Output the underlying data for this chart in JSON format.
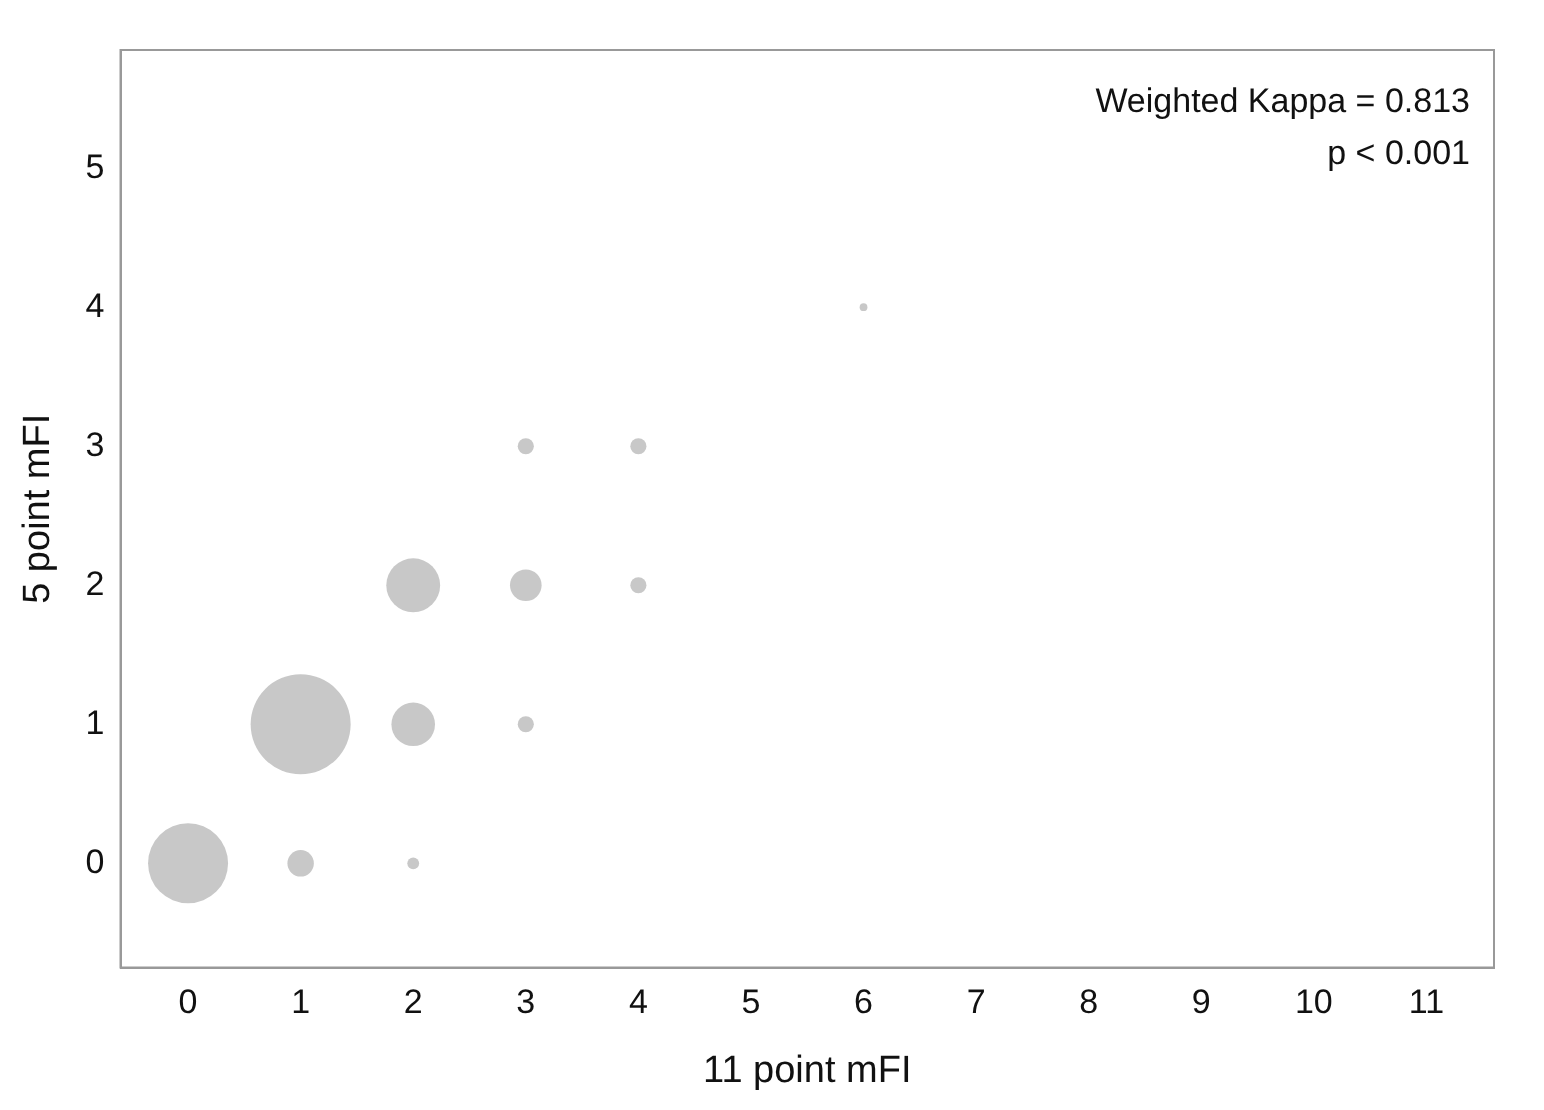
{
  "chart_data": {
    "type": "bubble",
    "xlabel": "11 point mFI",
    "ylabel": "5 point mFI",
    "annotations": [
      "Weighted Kappa = 0.813",
      "p < 0.001"
    ],
    "series": [
      {
        "color": "#c8c8c8",
        "x": [
          0,
          1,
          2,
          1,
          2,
          3,
          2,
          3,
          4,
          3,
          4,
          6
        ],
        "values": [
          0,
          0,
          0,
          1,
          1,
          1,
          2,
          2,
          2,
          3,
          3,
          4
        ],
        "sizes": [
          0.64,
          0.07,
          0.014,
          1,
          0.19,
          0.026,
          0.29,
          0.1,
          0.026,
          0.026,
          0.026,
          0.006
        ]
      }
    ],
    "xlim": [
      -0.6,
      11.6
    ],
    "xticks": [
      0,
      1,
      2,
      3,
      4,
      5,
      6,
      7,
      8,
      9,
      10,
      11
    ],
    "ylim": [
      -0.75,
      5.85
    ],
    "yticks": [
      0,
      1,
      2,
      3,
      4,
      5
    ],
    "grid": false,
    "legend": false
  }
}
